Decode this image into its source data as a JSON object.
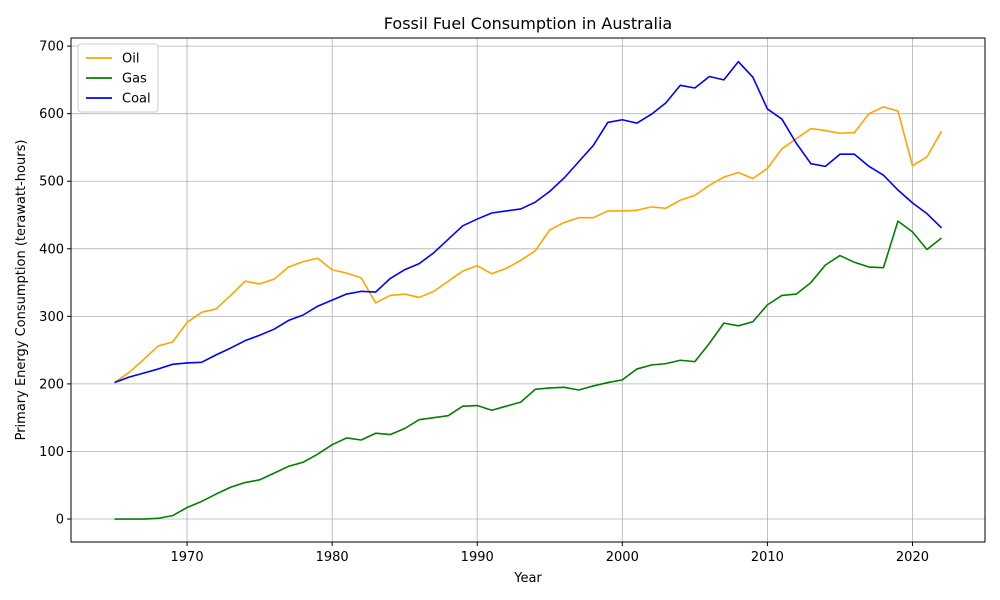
{
  "chart_data": {
    "type": "line",
    "title": "Fossil Fuel Consumption in Australia",
    "xlabel": "Year",
    "ylabel": "Primary Energy Consumption (terawatt-hours)",
    "xlim": [
      1962,
      2025
    ],
    "ylim": [
      -34,
      712
    ],
    "xticks": [
      1970,
      1980,
      1990,
      2000,
      2010,
      2020
    ],
    "yticks": [
      0,
      100,
      200,
      300,
      400,
      500,
      600,
      700
    ],
    "grid": true,
    "legend_position": "top-left",
    "x": [
      1965,
      1966,
      1967,
      1968,
      1969,
      1970,
      1971,
      1972,
      1973,
      1974,
      1975,
      1976,
      1977,
      1978,
      1979,
      1980,
      1981,
      1982,
      1983,
      1984,
      1985,
      1986,
      1987,
      1988,
      1989,
      1990,
      1991,
      1992,
      1993,
      1994,
      1995,
      1996,
      1997,
      1998,
      1999,
      2000,
      2001,
      2002,
      2003,
      2004,
      2005,
      2006,
      2007,
      2008,
      2009,
      2010,
      2011,
      2012,
      2013,
      2014,
      2015,
      2016,
      2017,
      2018,
      2019,
      2020,
      2021,
      2022
    ],
    "series": [
      {
        "name": "Oil",
        "color": "#FFA500",
        "values": [
          202,
          217,
          236,
          256,
          262,
          291,
          306,
          311,
          331,
          352,
          348,
          355,
          373,
          381,
          386,
          369,
          364,
          357,
          320,
          331,
          333,
          328,
          337,
          352,
          367,
          375,
          363,
          371,
          383,
          397,
          428,
          439,
          446,
          446,
          456,
          456,
          457,
          462,
          460,
          472,
          479,
          494,
          506,
          513,
          504,
          519,
          548,
          563,
          578,
          575,
          571,
          572,
          600,
          610,
          604,
          523,
          536,
          574
        ]
      },
      {
        "name": "Gas",
        "color": "#008000",
        "values": [
          0,
          0,
          0,
          1,
          5,
          17,
          26,
          37,
          47,
          54,
          58,
          68,
          78,
          84,
          96,
          110,
          120,
          117,
          127,
          125,
          134,
          147,
          150,
          153,
          167,
          168,
          161,
          167,
          173,
          192,
          194,
          195,
          191,
          197,
          202,
          206,
          222,
          228,
          230,
          235,
          233,
          260,
          290,
          286,
          292,
          317,
          331,
          333,
          350,
          376,
          390,
          380,
          373,
          372,
          441,
          425,
          399,
          416
        ]
      },
      {
        "name": "Coal",
        "color": "#0000FF",
        "values": [
          202,
          210,
          216,
          222,
          229,
          231,
          232,
          243,
          253,
          264,
          272,
          281,
          294,
          302,
          315,
          324,
          333,
          337,
          336,
          356,
          369,
          378,
          394,
          414,
          434,
          444,
          453,
          456,
          459,
          469,
          485,
          505,
          529,
          553,
          587,
          591,
          586,
          599,
          616,
          642,
          638,
          655,
          650,
          677,
          654,
          607,
          592,
          556,
          526,
          522,
          540,
          540,
          522,
          509,
          487,
          468,
          452,
          431
        ]
      }
    ]
  }
}
